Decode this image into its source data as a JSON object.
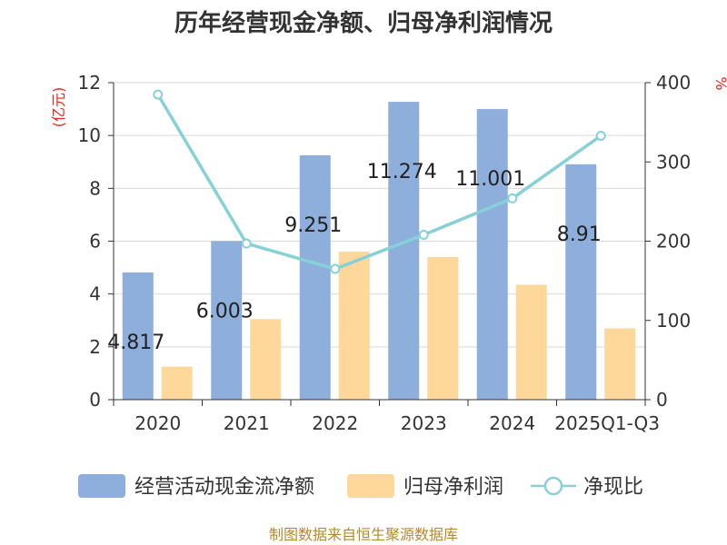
{
  "chart_data": {
    "type": "bar",
    "title": "历年经营现金净额、归母净利润情况",
    "categories": [
      "2020",
      "2021",
      "2022",
      "2023",
      "2024",
      "2025Q1-Q3"
    ],
    "series": [
      {
        "name": "经营活动现金流净额",
        "type": "bar",
        "axis": "left",
        "color": "#8eaedb",
        "values": [
          4.817,
          6.003,
          9.251,
          11.274,
          11.001,
          8.91
        ],
        "labels": [
          "4.817",
          "6.003",
          "9.251",
          "11.274",
          "11.001",
          "8.91"
        ]
      },
      {
        "name": "归母净利润",
        "type": "bar",
        "axis": "left",
        "color": "#fdd89a",
        "values": [
          1.25,
          3.05,
          5.6,
          5.4,
          4.35,
          2.7
        ]
      },
      {
        "name": "净现比",
        "type": "line",
        "axis": "right",
        "color": "#86d1d8",
        "values": [
          385,
          197,
          165,
          208,
          254,
          333
        ]
      }
    ],
    "y_left": {
      "label": "(亿元)",
      "ylim": [
        0,
        12
      ],
      "ticks": [
        "0",
        "2",
        "4",
        "6",
        "8",
        "10",
        "12"
      ]
    },
    "y_right": {
      "label": "%",
      "ylim": [
        0,
        400
      ],
      "ticks": [
        "0",
        "100",
        "200",
        "300",
        "400"
      ]
    },
    "grid": true,
    "legend_position": "bottom",
    "source": "制图数据来自恒生聚源数据库"
  }
}
